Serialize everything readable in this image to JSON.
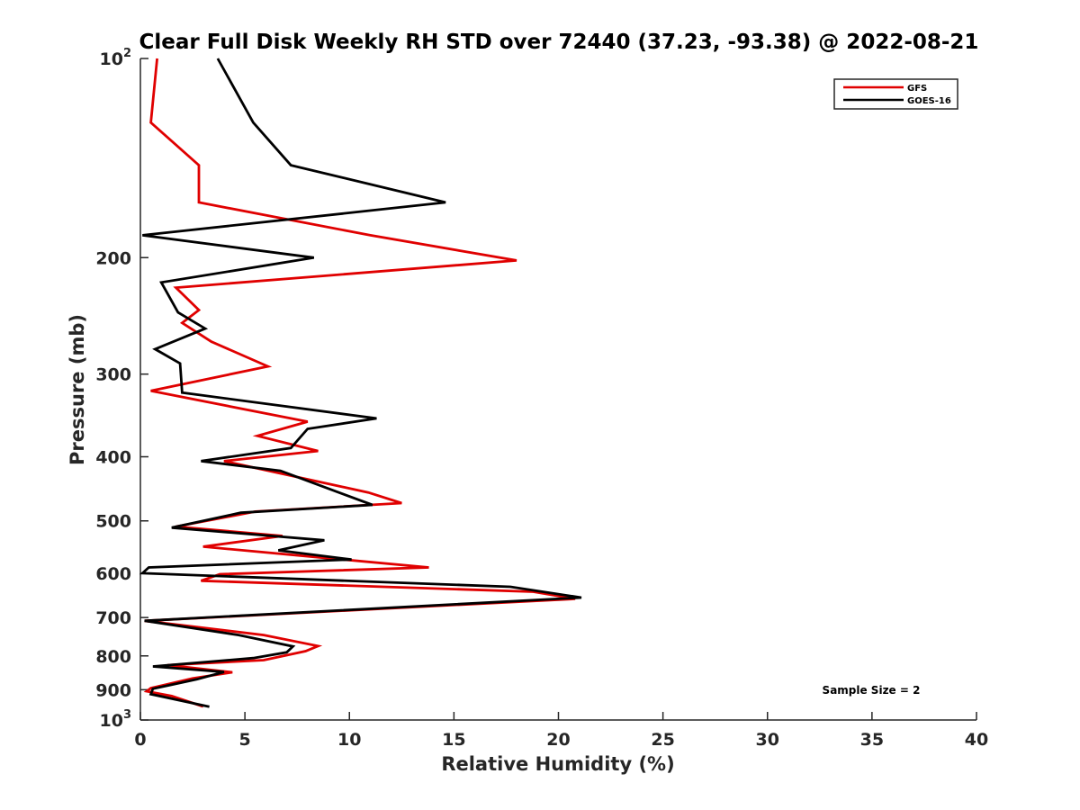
{
  "chart_data": {
    "type": "line",
    "title": "Clear Full Disk Weekly RH STD over 72440 (37.23, -93.38) @ 2022-08-21",
    "xlabel": "Relative Humidity (%)",
    "ylabel": "Pressure (mb)",
    "xlim": [
      0,
      40
    ],
    "ylim": [
      100,
      1000
    ],
    "y_scale": "log",
    "y_reversed": true,
    "x_ticks": [
      "0",
      "5",
      "10",
      "15",
      "20",
      "25",
      "30",
      "35",
      "40"
    ],
    "y_ticks": [
      {
        "value": 100,
        "base": "10",
        "sup": "2"
      },
      {
        "value": 200,
        "base": "200",
        "sup": ""
      },
      {
        "value": 300,
        "base": "300",
        "sup": ""
      },
      {
        "value": 400,
        "base": "400",
        "sup": ""
      },
      {
        "value": 500,
        "base": "500",
        "sup": ""
      },
      {
        "value": 600,
        "base": "600",
        "sup": ""
      },
      {
        "value": 700,
        "base": "700",
        "sup": ""
      },
      {
        "value": 800,
        "base": "800",
        "sup": ""
      },
      {
        "value": 900,
        "base": "900",
        "sup": ""
      },
      {
        "value": 1000,
        "base": "10",
        "sup": "3"
      }
    ],
    "legend_position": "top-right",
    "annotation": "Sample Size = 2",
    "series": [
      {
        "name": "GFS",
        "color": "#e00000",
        "points": [
          [
            0.8,
            100
          ],
          [
            0.5,
            125
          ],
          [
            2.8,
            145
          ],
          [
            2.8,
            165
          ],
          [
            11.0,
            185
          ],
          [
            18.0,
            202
          ],
          [
            1.7,
            222
          ],
          [
            2.8,
            240
          ],
          [
            2.0,
            251
          ],
          [
            3.4,
            268
          ],
          [
            6.1,
            292
          ],
          [
            0.5,
            318
          ],
          [
            8.0,
            354
          ],
          [
            5.6,
            372
          ],
          [
            8.5,
            392
          ],
          [
            4.0,
            406
          ],
          [
            10.9,
            453
          ],
          [
            12.5,
            470
          ],
          [
            5.5,
            484
          ],
          [
            1.7,
            510
          ],
          [
            6.8,
            527
          ],
          [
            3.0,
            547
          ],
          [
            13.8,
            588
          ],
          [
            3.8,
            602
          ],
          [
            2.9,
            616
          ],
          [
            18.8,
            640
          ],
          [
            20.8,
            656
          ],
          [
            0.2,
            708
          ],
          [
            5.9,
            744
          ],
          [
            8.5,
            773
          ],
          [
            7.9,
            787
          ],
          [
            5.9,
            812
          ],
          [
            1.3,
            826
          ],
          [
            4.4,
            847
          ],
          [
            2.5,
            865
          ],
          [
            0.5,
            895
          ],
          [
            0.3,
            905
          ],
          [
            1.5,
            920
          ],
          [
            3.0,
            954
          ]
        ]
      },
      {
        "name": "GOES-16",
        "color": "#000000",
        "points": [
          [
            3.7,
            100
          ],
          [
            5.4,
            125
          ],
          [
            7.2,
            145
          ],
          [
            14.6,
            165
          ],
          [
            0.1,
            185
          ],
          [
            8.3,
            200
          ],
          [
            1.0,
            218
          ],
          [
            1.8,
            242
          ],
          [
            3.1,
            256
          ],
          [
            0.7,
            275
          ],
          [
            1.9,
            289
          ],
          [
            2.0,
            320
          ],
          [
            11.3,
            350
          ],
          [
            8.0,
            363
          ],
          [
            7.2,
            388
          ],
          [
            2.9,
            406
          ],
          [
            6.7,
            420
          ],
          [
            11.1,
            473
          ],
          [
            4.8,
            486
          ],
          [
            1.5,
            512
          ],
          [
            8.8,
            535
          ],
          [
            6.6,
            554
          ],
          [
            10.1,
            572
          ],
          [
            0.4,
            588
          ],
          [
            0.1,
            600
          ],
          [
            17.7,
            629
          ],
          [
            21.1,
            653
          ],
          [
            0.2,
            708
          ],
          [
            4.7,
            744
          ],
          [
            7.3,
            774
          ],
          [
            7.0,
            790
          ],
          [
            5.4,
            806
          ],
          [
            0.6,
            830
          ],
          [
            4.0,
            846
          ],
          [
            2.7,
            868
          ],
          [
            0.6,
            897
          ],
          [
            0.5,
            914
          ],
          [
            3.3,
            955
          ]
        ]
      }
    ]
  }
}
